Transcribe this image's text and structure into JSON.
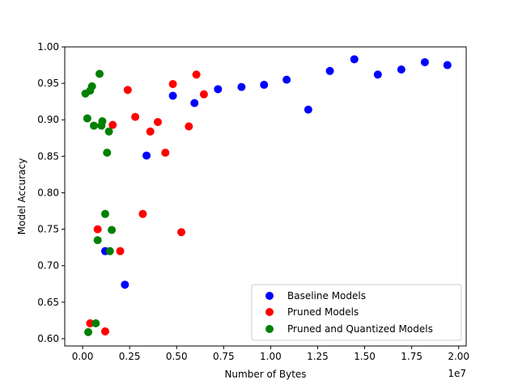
{
  "chart_data": {
    "type": "scatter",
    "title": "",
    "xlabel": "Number of Bytes",
    "ylabel": "Model Accuracy",
    "x_offset_label": "1e7",
    "xlim": [
      -950000,
      20400000
    ],
    "ylim": [
      0.59,
      1.0
    ],
    "x_ticks": [
      0,
      2500000,
      5000000,
      7500000,
      10000000,
      12500000,
      15000000,
      17500000,
      20000000
    ],
    "x_tick_labels": [
      "0.00",
      "0.25",
      "0.50",
      "0.75",
      "1.00",
      "1.25",
      "1.50",
      "1.75",
      "2.00"
    ],
    "y_ticks": [
      0.6,
      0.65,
      0.7,
      0.75,
      0.8,
      0.85,
      0.9,
      0.95,
      1.0
    ],
    "y_tick_labels": [
      "0.60",
      "0.65",
      "0.70",
      "0.75",
      "0.80",
      "0.85",
      "0.90",
      "0.95",
      "1.00"
    ],
    "grid": false,
    "legend_position": "lower-right",
    "series": [
      {
        "name": "Baseline Models",
        "color": "#0000ff",
        "points": [
          [
            1200000,
            0.72
          ],
          [
            2250000,
            0.674
          ],
          [
            3400000,
            0.851
          ],
          [
            4800000,
            0.933
          ],
          [
            5950000,
            0.923
          ],
          [
            7200000,
            0.942
          ],
          [
            8450000,
            0.945
          ],
          [
            9650000,
            0.948
          ],
          [
            10850000,
            0.955
          ],
          [
            12000000,
            0.914
          ],
          [
            13150000,
            0.967
          ],
          [
            14450000,
            0.983
          ],
          [
            15700000,
            0.962
          ],
          [
            16950000,
            0.969
          ],
          [
            18200000,
            0.979
          ],
          [
            19400000,
            0.975
          ]
        ]
      },
      {
        "name": "Pruned Models",
        "color": "#ff0000",
        "points": [
          [
            400000,
            0.621
          ],
          [
            800000,
            0.75
          ],
          [
            1200000,
            0.61
          ],
          [
            1600000,
            0.893
          ],
          [
            2000000,
            0.72
          ],
          [
            2400000,
            0.941
          ],
          [
            2800000,
            0.904
          ],
          [
            3200000,
            0.771
          ],
          [
            3600000,
            0.884
          ],
          [
            4000000,
            0.897
          ],
          [
            4400000,
            0.855
          ],
          [
            4800000,
            0.949
          ],
          [
            5250000,
            0.746
          ],
          [
            5650000,
            0.891
          ],
          [
            6050000,
            0.962
          ],
          [
            6450000,
            0.935
          ]
        ]
      },
      {
        "name": "Pruned and Quantized Models",
        "color": "#008000",
        "points": [
          [
            150000,
            0.936
          ],
          [
            250000,
            0.902
          ],
          [
            300000,
            0.609
          ],
          [
            400000,
            0.94
          ],
          [
            500000,
            0.946
          ],
          [
            600000,
            0.892
          ],
          [
            700000,
            0.621
          ],
          [
            800000,
            0.735
          ],
          [
            900000,
            0.963
          ],
          [
            1000000,
            0.892
          ],
          [
            1050000,
            0.898
          ],
          [
            1200000,
            0.771
          ],
          [
            1300000,
            0.855
          ],
          [
            1400000,
            0.884
          ],
          [
            1450000,
            0.72
          ],
          [
            1550000,
            0.749
          ]
        ]
      }
    ]
  }
}
